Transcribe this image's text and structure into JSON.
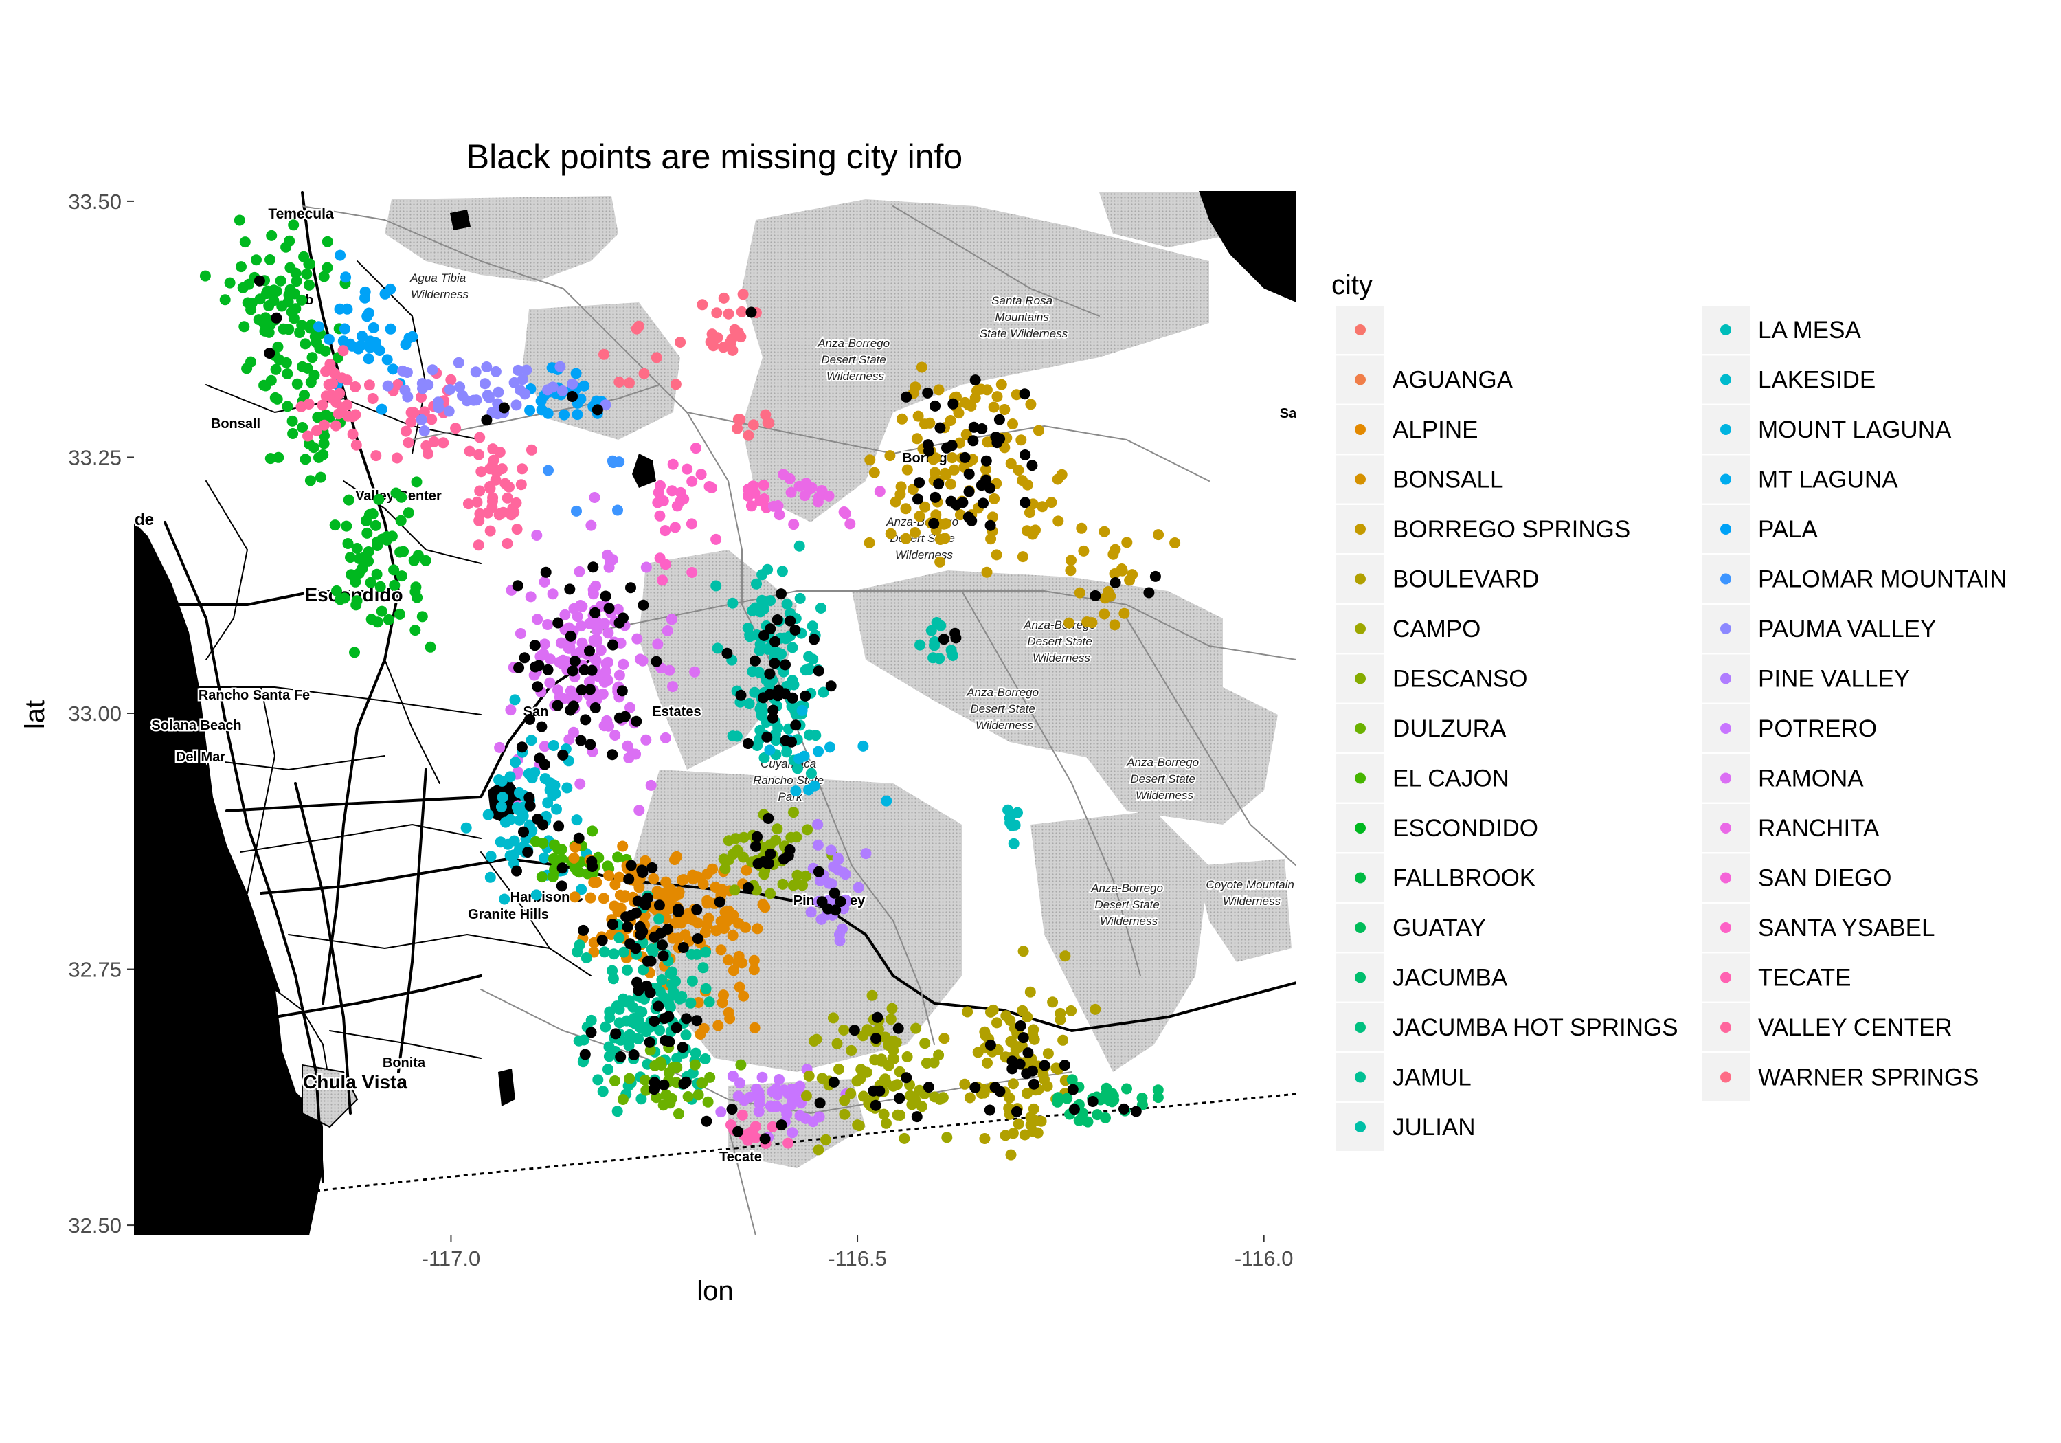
{
  "chart_data": {
    "type": "scatter",
    "title": "Black points are missing city info",
    "xlabel": "lon",
    "ylabel": "lat",
    "xlim": [
      -117.39,
      -115.96
    ],
    "ylim": [
      32.49,
      33.51
    ],
    "x_ticks": [
      -117.0,
      -116.5,
      -116.0
    ],
    "x_tick_labels": [
      "-117.0",
      "-116.5",
      "-116.0"
    ],
    "y_ticks": [
      32.5,
      32.75,
      33.0,
      33.25,
      33.5
    ],
    "y_tick_labels": [
      "32.50",
      "32.75",
      "33.00",
      "33.25",
      "33.50"
    ],
    "grid": false,
    "basemap": "grayscale road map with shaded wilderness areas",
    "legend": {
      "title": "city",
      "placement": "right",
      "entries": [
        {
          "label": "",
          "color": "#F8766D"
        },
        {
          "label": "AGUANGA",
          "color": "#F07E49"
        },
        {
          "label": "ALPINE",
          "color": "#E38900"
        },
        {
          "label": "BONSALL",
          "color": "#D59100"
        },
        {
          "label": "BORREGO SPRINGS",
          "color": "#C49A00"
        },
        {
          "label": "BOULEVARD",
          "color": "#B1A000"
        },
        {
          "label": "CAMPO",
          "color": "#9DA700"
        },
        {
          "label": "DESCANSO",
          "color": "#86AC00"
        },
        {
          "label": "DULZURA",
          "color": "#6BB100"
        },
        {
          "label": "EL CAJON",
          "color": "#46B500"
        },
        {
          "label": "ESCONDIDO",
          "color": "#00B81F"
        },
        {
          "label": "FALLBROOK",
          "color": "#00BA42"
        },
        {
          "label": "GUATAY",
          "color": "#00BC59"
        },
        {
          "label": "JACUMBA",
          "color": "#00BE6D"
        },
        {
          "label": "JACUMBA HOT SPRINGS",
          "color": "#00C080"
        },
        {
          "label": "JAMUL",
          "color": "#00C094"
        },
        {
          "label": "JULIAN",
          "color": "#00BFA7"
        },
        {
          "label": "LA MESA",
          "color": "#00BDBA"
        },
        {
          "label": "LAKESIDE",
          "color": "#00BACD"
        },
        {
          "label": "MOUNT LAGUNA",
          "color": "#00B4E0"
        },
        {
          "label": "MT LAGUNA",
          "color": "#00ACEE"
        },
        {
          "label": "PALA",
          "color": "#00A2F7"
        },
        {
          "label": "PALOMAR MOUNTAIN",
          "color": "#3D95FF"
        },
        {
          "label": "PAUMA VALLEY",
          "color": "#8C88FF"
        },
        {
          "label": "PINE VALLEY",
          "color": "#B07DFF"
        },
        {
          "label": "POTRERO",
          "color": "#C875FF"
        },
        {
          "label": "RAMONA",
          "color": "#DB6FF4"
        },
        {
          "label": "RANCHITA",
          "color": "#EA69E7"
        },
        {
          "label": "SAN DIEGO",
          "color": "#F564D8"
        },
        {
          "label": "SANTA YSABEL",
          "color": "#FD61C6"
        },
        {
          "label": "TECATE",
          "color": "#FF62B2"
        },
        {
          "label": "VALLEY CENTER",
          "color": "#FF669D"
        },
        {
          "label": "WARNER SPRINGS",
          "color": "#FE6C86"
        }
      ]
    },
    "missing_color": "#000000",
    "clusters": [
      {
        "city": "ESCONDIDO",
        "lon": -117.21,
        "lat": 33.39,
        "n": 90,
        "spread": [
          0.035,
          0.04
        ],
        "missing": 3
      },
      {
        "city": "ESCONDIDO",
        "lon": -117.17,
        "lat": 33.28,
        "n": 25,
        "spread": [
          0.02,
          0.03
        ],
        "missing": 0
      },
      {
        "city": "ESCONDIDO",
        "lon": -117.08,
        "lat": 33.14,
        "n": 60,
        "spread": [
          0.035,
          0.035
        ],
        "missing": 0
      },
      {
        "city": "PALA",
        "lon": -117.1,
        "lat": 33.37,
        "n": 35,
        "spread": [
          0.025,
          0.03
        ],
        "missing": 0
      },
      {
        "city": "PALA",
        "lon": -116.86,
        "lat": 33.31,
        "n": 25,
        "spread": [
          0.03,
          0.012
        ],
        "missing": 2
      },
      {
        "city": "VALLEY CENTER",
        "lon": -117.13,
        "lat": 33.3,
        "n": 35,
        "spread": [
          0.03,
          0.025
        ],
        "missing": 0
      },
      {
        "city": "VALLEY CENTER",
        "lon": -117.03,
        "lat": 33.29,
        "n": 20,
        "spread": [
          0.02,
          0.02
        ],
        "missing": 0
      },
      {
        "city": "VALLEY CENTER",
        "lon": -116.95,
        "lat": 33.21,
        "n": 40,
        "spread": [
          0.02,
          0.03
        ],
        "missing": 0
      },
      {
        "city": "PAUMA VALLEY",
        "lon": -116.96,
        "lat": 33.31,
        "n": 45,
        "spread": [
          0.06,
          0.018
        ],
        "missing": 2
      },
      {
        "city": "WARNER SPRINGS",
        "lon": -116.66,
        "lat": 33.38,
        "n": 20,
        "spread": [
          0.025,
          0.015
        ],
        "missing": 1
      },
      {
        "city": "WARNER SPRINGS",
        "lon": -116.77,
        "lat": 33.35,
        "n": 8,
        "spread": [
          0.03,
          0.02
        ],
        "missing": 0
      },
      {
        "city": "WARNER SPRINGS",
        "lon": -116.63,
        "lat": 33.28,
        "n": 8,
        "spread": [
          0.02,
          0.01
        ],
        "missing": 0
      },
      {
        "city": "SANTA YSABEL",
        "lon": -116.72,
        "lat": 33.2,
        "n": 25,
        "spread": [
          0.02,
          0.03
        ],
        "missing": 0
      },
      {
        "city": "SANTA YSABEL",
        "lon": -116.63,
        "lat": 33.21,
        "n": 10,
        "spread": [
          0.015,
          0.01
        ],
        "missing": 0
      },
      {
        "city": "RANCHITA",
        "lon": -116.55,
        "lat": 33.21,
        "n": 20,
        "spread": [
          0.035,
          0.015
        ],
        "missing": 0
      },
      {
        "city": "BORREGO SPRINGS",
        "lon": -116.36,
        "lat": 33.24,
        "n": 110,
        "spread": [
          0.05,
          0.055
        ],
        "missing": 40
      },
      {
        "city": "BORREGO SPRINGS",
        "lon": -116.18,
        "lat": 33.13,
        "n": 25,
        "spread": [
          0.045,
          0.03
        ],
        "missing": 4
      },
      {
        "city": "RAMONA",
        "lon": -116.83,
        "lat": 33.05,
        "n": 150,
        "spread": [
          0.05,
          0.055
        ],
        "missing": 45
      },
      {
        "city": "JULIAN",
        "lon": -116.6,
        "lat": 33.04,
        "n": 110,
        "spread": [
          0.03,
          0.05
        ],
        "missing": 30
      },
      {
        "city": "JULIAN",
        "lon": -116.4,
        "lat": 33.07,
        "n": 10,
        "spread": [
          0.02,
          0.01
        ],
        "missing": 3
      },
      {
        "city": "LAKESIDE",
        "lon": -116.9,
        "lat": 32.9,
        "n": 70,
        "spread": [
          0.03,
          0.04
        ],
        "missing": 12
      },
      {
        "city": "EL CAJON",
        "lon": -116.85,
        "lat": 32.86,
        "n": 30,
        "spread": [
          0.03,
          0.015
        ],
        "missing": 3
      },
      {
        "city": "ALPINE",
        "lon": -116.75,
        "lat": 32.81,
        "n": 120,
        "spread": [
          0.05,
          0.03
        ],
        "missing": 30
      },
      {
        "city": "ALPINE",
        "lon": -116.66,
        "lat": 32.78,
        "n": 40,
        "spread": [
          0.02,
          0.05
        ],
        "missing": 0
      },
      {
        "city": "DESCANSO",
        "lon": -116.61,
        "lat": 32.86,
        "n": 45,
        "spread": [
          0.03,
          0.02
        ],
        "missing": 12
      },
      {
        "city": "PINE VALLEY",
        "lon": -116.53,
        "lat": 32.83,
        "n": 30,
        "spread": [
          0.02,
          0.03
        ],
        "missing": 6
      },
      {
        "city": "JAMUL",
        "lon": -116.76,
        "lat": 32.71,
        "n": 130,
        "spread": [
          0.04,
          0.045
        ],
        "missing": 25
      },
      {
        "city": "DULZURA",
        "lon": -116.73,
        "lat": 32.64,
        "n": 30,
        "spread": [
          0.035,
          0.015
        ],
        "missing": 5
      },
      {
        "city": "POTRERO",
        "lon": -116.6,
        "lat": 32.62,
        "n": 40,
        "spread": [
          0.03,
          0.015
        ],
        "missing": 3
      },
      {
        "city": "TECATE",
        "lon": -116.63,
        "lat": 32.59,
        "n": 12,
        "spread": [
          0.015,
          0.008
        ],
        "missing": 2
      },
      {
        "city": "CAMPO",
        "lon": -116.47,
        "lat": 32.65,
        "n": 80,
        "spread": [
          0.04,
          0.035
        ],
        "missing": 12
      },
      {
        "city": "BOULEVARD",
        "lon": -116.3,
        "lat": 32.66,
        "n": 90,
        "spread": [
          0.035,
          0.04
        ],
        "missing": 18
      },
      {
        "city": "JACUMBA",
        "lon": -116.2,
        "lat": 32.62,
        "n": 30,
        "spread": [
          0.04,
          0.012
        ],
        "missing": 4
      },
      {
        "city": "LA MESA",
        "lon": -116.31,
        "lat": 32.89,
        "n": 8,
        "spread": [
          0.006,
          0.01
        ],
        "missing": 0
      },
      {
        "city": "MOUNT LAGUNA",
        "lon": -116.54,
        "lat": 32.97,
        "n": 12,
        "spread": [
          0.04,
          0.04
        ],
        "missing": 0
      },
      {
        "city": "PALOMAR MOUNTAIN",
        "lon": -116.82,
        "lat": 33.22,
        "n": 6,
        "spread": [
          0.03,
          0.03
        ],
        "missing": 0
      }
    ]
  },
  "map_labels": {
    "places": [
      "Temecula",
      "Bonsall",
      "Valley Center",
      "Escondido",
      "Rancho Santa Fe",
      "Solana Beach",
      "Del Mar",
      "Harbison C",
      "Granite Hills",
      "Bonita",
      "Chula Vista",
      "Tecate",
      "Pine Valley",
      "Borrego",
      "San",
      "Estates",
      "de",
      "Sa",
      "nb"
    ],
    "wilderness": [
      [
        "Agua Tibia",
        "Wilderness"
      ],
      [
        "Santa Rosa",
        "Mountains",
        "State Wilderness"
      ],
      [
        "Anza-Borrego",
        "Desert State",
        "Wilderness"
      ],
      [
        "Anza-Borrego",
        "Desert State",
        "Wilderness"
      ],
      [
        "Anza-Borrego",
        "Desert State",
        "Wilderness"
      ],
      [
        "Anza-Borrego",
        "Desert State",
        "Wilderness"
      ],
      [
        "Anza-Borrego",
        "Desert State",
        "Wilderness"
      ],
      [
        "Anza-Borrego",
        "Desert State",
        "Wilderness"
      ],
      [
        "Cuyamaca",
        "Rancho State",
        "Park"
      ],
      [
        "Coyote Mountain",
        "Wilderness"
      ]
    ]
  }
}
